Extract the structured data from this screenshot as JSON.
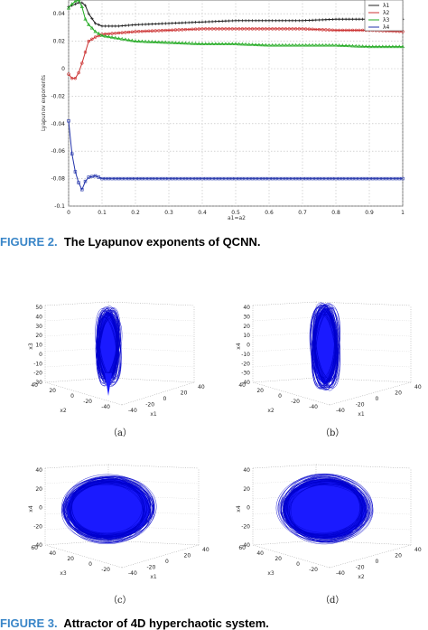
{
  "figure2": {
    "label": "FIGURE 2.",
    "caption": "The Lyapunov exponents of QCNN.",
    "chart_data": {
      "type": "line",
      "xlabel": "a1=a2",
      "ylabel": "Lyapunov exponents",
      "xlim": [
        0,
        1
      ],
      "ylim": [
        -0.1,
        0.05
      ],
      "x_ticks": [
        "0",
        "0.1",
        "0.2",
        "0.3",
        "0.4",
        "0.5",
        "0.6",
        "0.7",
        "0.8",
        "0.9",
        "1"
      ],
      "y_ticks": [
        "0.04",
        "0.02",
        "0",
        "-0.02",
        "-0.04",
        "-0.06",
        "-0.08",
        "-0.1"
      ],
      "grid": true,
      "legend_position": "top-right",
      "x": [
        0,
        0.01,
        0.02,
        0.03,
        0.04,
        0.05,
        0.06,
        0.08,
        0.1,
        0.15,
        0.2,
        0.3,
        0.4,
        0.5,
        0.6,
        0.7,
        0.8,
        0.9,
        1.0
      ],
      "series": [
        {
          "name": "λ1",
          "color": "#222222",
          "values": [
            0.045,
            0.046,
            0.047,
            0.048,
            0.048,
            0.046,
            0.04,
            0.033,
            0.031,
            0.031,
            0.032,
            0.033,
            0.034,
            0.035,
            0.035,
            0.035,
            0.036,
            0.036,
            0.036
          ]
        },
        {
          "name": "λ2",
          "color": "#cc3333",
          "values": [
            -0.004,
            -0.007,
            -0.007,
            -0.003,
            0.004,
            0.012,
            0.02,
            0.023,
            0.025,
            0.026,
            0.027,
            0.028,
            0.029,
            0.029,
            0.029,
            0.029,
            0.028,
            0.028,
            0.027
          ]
        },
        {
          "name": "λ3",
          "color": "#22aa22",
          "values": [
            0.044,
            0.047,
            0.049,
            0.05,
            0.045,
            0.036,
            0.032,
            0.027,
            0.024,
            0.022,
            0.02,
            0.019,
            0.018,
            0.018,
            0.017,
            0.017,
            0.017,
            0.016,
            0.016
          ]
        },
        {
          "name": "λ4",
          "color": "#2233aa",
          "values": [
            -0.038,
            -0.062,
            -0.075,
            -0.083,
            -0.088,
            -0.082,
            -0.079,
            -0.078,
            -0.08,
            -0.08,
            -0.08,
            -0.08,
            -0.08,
            -0.08,
            -0.08,
            -0.08,
            -0.08,
            -0.08,
            -0.08
          ]
        }
      ]
    }
  },
  "figure3": {
    "label": "FIGURE 3.",
    "caption": "Attractor of 4D hyperchaotic system.",
    "panels": [
      {
        "label": "（a）",
        "z_axis": "x3",
        "x_axis": "x1",
        "y_axis": "x2",
        "z_ticks": [
          "50",
          "40",
          "30",
          "20",
          "10",
          "0",
          "-10",
          "-20",
          "-30"
        ],
        "x_ticks": [
          "-40",
          "-20",
          "0",
          "20",
          "40"
        ],
        "y_ticks": [
          "40",
          "20",
          "0",
          "-20",
          "-40"
        ],
        "shape": "spindle"
      },
      {
        "label": "（b）",
        "z_axis": "x4",
        "x_axis": "x1",
        "y_axis": "x2",
        "z_ticks": [
          "40",
          "30",
          "20",
          "10",
          "0",
          "-10",
          "-20",
          "-30",
          "-40"
        ],
        "x_ticks": [
          "-40",
          "-20",
          "0",
          "20",
          "40"
        ],
        "y_ticks": [
          "40",
          "20",
          "0",
          "-20",
          "-40"
        ],
        "shape": "ellipse"
      },
      {
        "label": "（c）",
        "z_axis": "x4",
        "x_axis": "x1",
        "y_axis": "x3",
        "z_ticks": [
          "40",
          "20",
          "0",
          "-20",
          "-40"
        ],
        "x_ticks": [
          "-40",
          "-20",
          "0",
          "20",
          "40"
        ],
        "y_ticks": [
          "60",
          "40",
          "20",
          "0",
          "-20"
        ],
        "shape": "blob"
      },
      {
        "label": "（d）",
        "z_axis": "x4",
        "x_axis": "x2",
        "y_axis": "x3",
        "z_ticks": [
          "40",
          "20",
          "0",
          "-20",
          "-40"
        ],
        "x_ticks": [
          "-40",
          "-20",
          "0",
          "20",
          "40"
        ],
        "y_ticks": [
          "60",
          "40",
          "20",
          "0",
          "-20"
        ],
        "shape": "blob"
      }
    ]
  }
}
